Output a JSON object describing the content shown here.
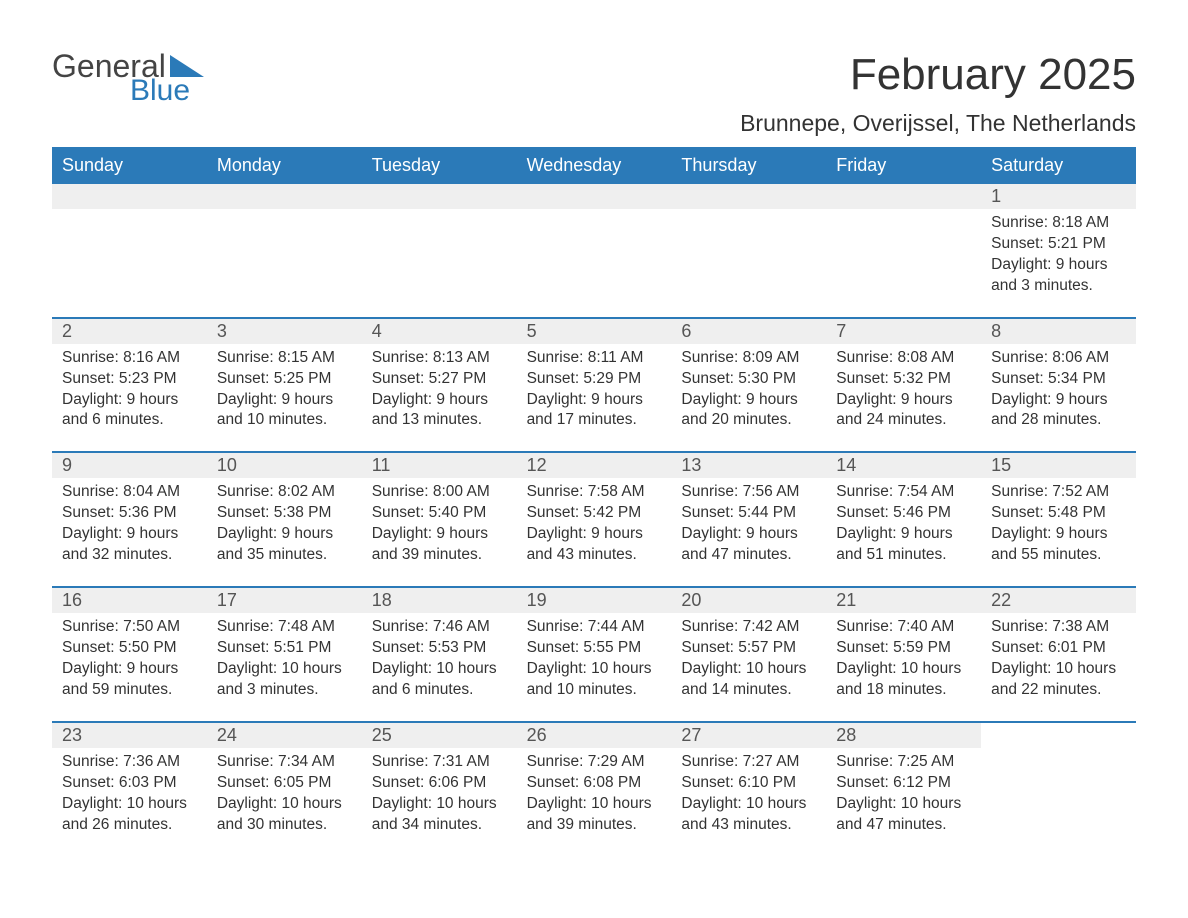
{
  "logo": {
    "word1": "General",
    "word2": "Blue"
  },
  "title": "February 2025",
  "location": "Brunnepe, Overijssel, The Netherlands",
  "colors": {
    "header_bg": "#2b7ab8",
    "header_text": "#ffffff",
    "daynum_bg": "#efefef",
    "week_border": "#2b7ab8",
    "body_text": "#333333",
    "logo_gray": "#444444",
    "logo_blue": "#2b7ab8",
    "page_bg": "#ffffff"
  },
  "typography": {
    "month_title_fontsize": 44,
    "location_fontsize": 23,
    "dayheader_fontsize": 18,
    "daynum_fontsize": 18,
    "info_fontsize": 15.5,
    "logo_fontsize": 32
  },
  "layout": {
    "columns": 7,
    "rows": 5,
    "cell_min_height": 118
  },
  "day_names": [
    "Sunday",
    "Monday",
    "Tuesday",
    "Wednesday",
    "Thursday",
    "Friday",
    "Saturday"
  ],
  "weeks": [
    [
      {
        "empty": true
      },
      {
        "empty": true
      },
      {
        "empty": true
      },
      {
        "empty": true
      },
      {
        "empty": true
      },
      {
        "empty": true
      },
      {
        "day": "1",
        "sunrise": "Sunrise: 8:18 AM",
        "sunset": "Sunset: 5:21 PM",
        "daylight": "Daylight: 9 hours and 3 minutes."
      }
    ],
    [
      {
        "day": "2",
        "sunrise": "Sunrise: 8:16 AM",
        "sunset": "Sunset: 5:23 PM",
        "daylight": "Daylight: 9 hours and 6 minutes."
      },
      {
        "day": "3",
        "sunrise": "Sunrise: 8:15 AM",
        "sunset": "Sunset: 5:25 PM",
        "daylight": "Daylight: 9 hours and 10 minutes."
      },
      {
        "day": "4",
        "sunrise": "Sunrise: 8:13 AM",
        "sunset": "Sunset: 5:27 PM",
        "daylight": "Daylight: 9 hours and 13 minutes."
      },
      {
        "day": "5",
        "sunrise": "Sunrise: 8:11 AM",
        "sunset": "Sunset: 5:29 PM",
        "daylight": "Daylight: 9 hours and 17 minutes."
      },
      {
        "day": "6",
        "sunrise": "Sunrise: 8:09 AM",
        "sunset": "Sunset: 5:30 PM",
        "daylight": "Daylight: 9 hours and 20 minutes."
      },
      {
        "day": "7",
        "sunrise": "Sunrise: 8:08 AM",
        "sunset": "Sunset: 5:32 PM",
        "daylight": "Daylight: 9 hours and 24 minutes."
      },
      {
        "day": "8",
        "sunrise": "Sunrise: 8:06 AM",
        "sunset": "Sunset: 5:34 PM",
        "daylight": "Daylight: 9 hours and 28 minutes."
      }
    ],
    [
      {
        "day": "9",
        "sunrise": "Sunrise: 8:04 AM",
        "sunset": "Sunset: 5:36 PM",
        "daylight": "Daylight: 9 hours and 32 minutes."
      },
      {
        "day": "10",
        "sunrise": "Sunrise: 8:02 AM",
        "sunset": "Sunset: 5:38 PM",
        "daylight": "Daylight: 9 hours and 35 minutes."
      },
      {
        "day": "11",
        "sunrise": "Sunrise: 8:00 AM",
        "sunset": "Sunset: 5:40 PM",
        "daylight": "Daylight: 9 hours and 39 minutes."
      },
      {
        "day": "12",
        "sunrise": "Sunrise: 7:58 AM",
        "sunset": "Sunset: 5:42 PM",
        "daylight": "Daylight: 9 hours and 43 minutes."
      },
      {
        "day": "13",
        "sunrise": "Sunrise: 7:56 AM",
        "sunset": "Sunset: 5:44 PM",
        "daylight": "Daylight: 9 hours and 47 minutes."
      },
      {
        "day": "14",
        "sunrise": "Sunrise: 7:54 AM",
        "sunset": "Sunset: 5:46 PM",
        "daylight": "Daylight: 9 hours and 51 minutes."
      },
      {
        "day": "15",
        "sunrise": "Sunrise: 7:52 AM",
        "sunset": "Sunset: 5:48 PM",
        "daylight": "Daylight: 9 hours and 55 minutes."
      }
    ],
    [
      {
        "day": "16",
        "sunrise": "Sunrise: 7:50 AM",
        "sunset": "Sunset: 5:50 PM",
        "daylight": "Daylight: 9 hours and 59 minutes."
      },
      {
        "day": "17",
        "sunrise": "Sunrise: 7:48 AM",
        "sunset": "Sunset: 5:51 PM",
        "daylight": "Daylight: 10 hours and 3 minutes."
      },
      {
        "day": "18",
        "sunrise": "Sunrise: 7:46 AM",
        "sunset": "Sunset: 5:53 PM",
        "daylight": "Daylight: 10 hours and 6 minutes."
      },
      {
        "day": "19",
        "sunrise": "Sunrise: 7:44 AM",
        "sunset": "Sunset: 5:55 PM",
        "daylight": "Daylight: 10 hours and 10 minutes."
      },
      {
        "day": "20",
        "sunrise": "Sunrise: 7:42 AM",
        "sunset": "Sunset: 5:57 PM",
        "daylight": "Daylight: 10 hours and 14 minutes."
      },
      {
        "day": "21",
        "sunrise": "Sunrise: 7:40 AM",
        "sunset": "Sunset: 5:59 PM",
        "daylight": "Daylight: 10 hours and 18 minutes."
      },
      {
        "day": "22",
        "sunrise": "Sunrise: 7:38 AM",
        "sunset": "Sunset: 6:01 PM",
        "daylight": "Daylight: 10 hours and 22 minutes."
      }
    ],
    [
      {
        "day": "23",
        "sunrise": "Sunrise: 7:36 AM",
        "sunset": "Sunset: 6:03 PM",
        "daylight": "Daylight: 10 hours and 26 minutes."
      },
      {
        "day": "24",
        "sunrise": "Sunrise: 7:34 AM",
        "sunset": "Sunset: 6:05 PM",
        "daylight": "Daylight: 10 hours and 30 minutes."
      },
      {
        "day": "25",
        "sunrise": "Sunrise: 7:31 AM",
        "sunset": "Sunset: 6:06 PM",
        "daylight": "Daylight: 10 hours and 34 minutes."
      },
      {
        "day": "26",
        "sunrise": "Sunrise: 7:29 AM",
        "sunset": "Sunset: 6:08 PM",
        "daylight": "Daylight: 10 hours and 39 minutes."
      },
      {
        "day": "27",
        "sunrise": "Sunrise: 7:27 AM",
        "sunset": "Sunset: 6:10 PM",
        "daylight": "Daylight: 10 hours and 43 minutes."
      },
      {
        "day": "28",
        "sunrise": "Sunrise: 7:25 AM",
        "sunset": "Sunset: 6:12 PM",
        "daylight": "Daylight: 10 hours and 47 minutes."
      },
      {
        "empty": true,
        "no_bg": true
      }
    ]
  ]
}
